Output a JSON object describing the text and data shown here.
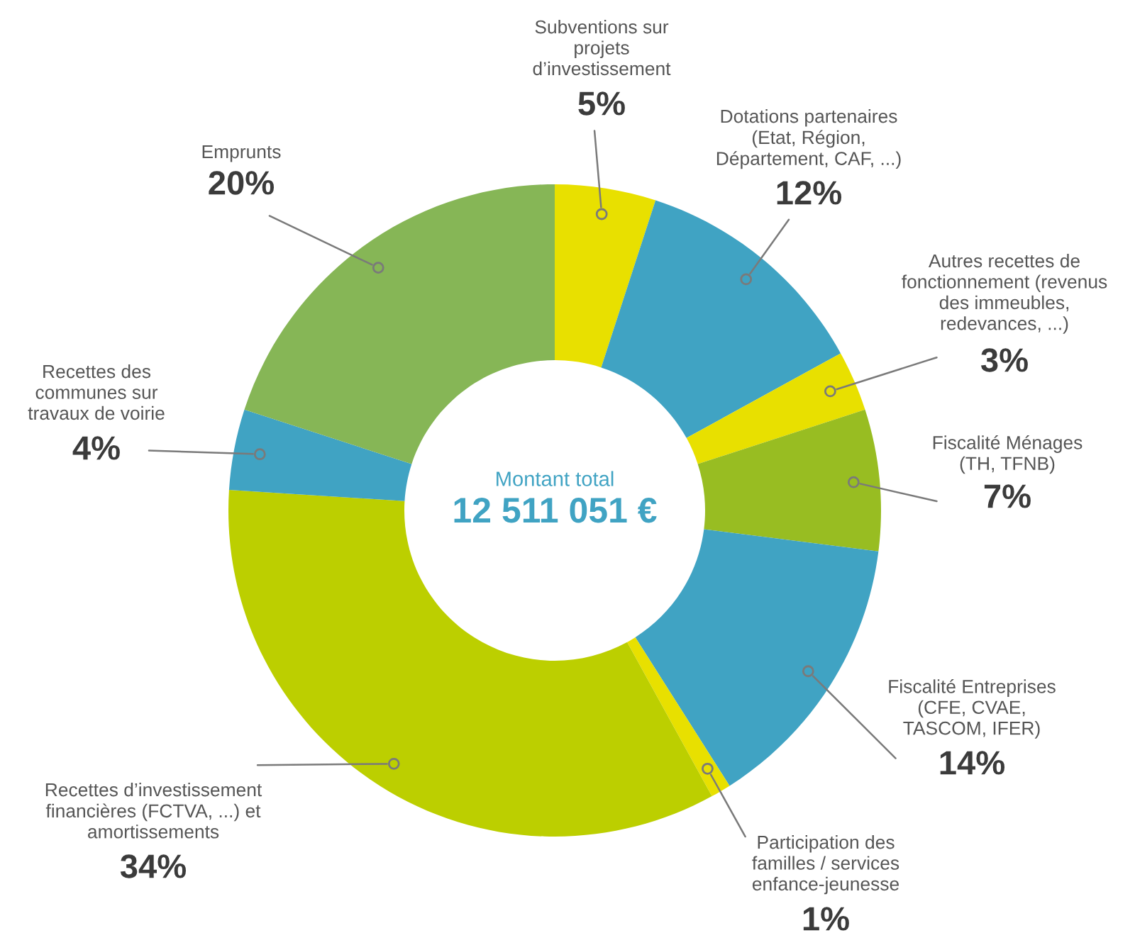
{
  "chart_data": {
    "type": "donut",
    "categories": [
      "Subventions sur\nprojets\nd’investissement",
      "Dotations partenaires\n(Etat, Région,\nDépartement, CAF, ...)",
      "Autres recettes de\nfonctionnement (revenus\ndes immeubles,\nredevances, ...)",
      "Fiscalité Ménages\n(TH, TFNB)",
      "Fiscalité Entreprises\n(CFE, CVAE,\nTASCOM, IFER)",
      "Participation des\nfamilles / services\nenfance-jeunesse",
      "Recettes d’investissement\nfinancières (FCTVA, ...) et\namortissements",
      "Recettes des\ncommunes sur\ntravaux de voirie",
      "Emprunts"
    ],
    "values": [
      5,
      12,
      3,
      7,
      14,
      1,
      34,
      4,
      20
    ],
    "colors": [
      "#e8e000",
      "#40a3c3",
      "#e8e000",
      "#98bd22",
      "#40a3c3",
      "#e8e000",
      "#bccf00",
      "#40a3c3",
      "#86b656"
    ],
    "value_labels": [
      "5%",
      "12%",
      "3%",
      "7%",
      "14%",
      "1%",
      "34%",
      "4%",
      "20%"
    ],
    "annotations": [
      "Montant total",
      "12 511 051 €"
    ]
  }
}
